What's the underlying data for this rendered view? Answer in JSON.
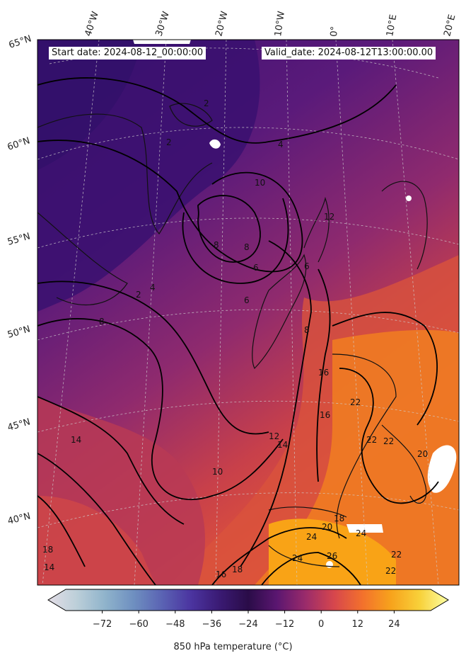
{
  "header": {
    "start_date": "Start date: 2024-08-12_00:00:00",
    "valid_date": "Valid_date: 2024-08-12T13:00:00.00"
  },
  "lon_labels": [
    "40°W",
    "30°W",
    "20°W",
    "10°W",
    "0°",
    "10°E",
    "20°E"
  ],
  "lat_labels": [
    "65°N",
    "60°N",
    "55°N",
    "50°N",
    "45°N",
    "40°N"
  ],
  "contour_labels": [
    "2",
    "2",
    "2",
    "4",
    "4",
    "6",
    "6",
    "6",
    "8",
    "8",
    "8",
    "8",
    "10",
    "10",
    "12",
    "12",
    "14",
    "14",
    "14",
    "16",
    "16",
    "16",
    "18",
    "18",
    "18",
    "20",
    "20",
    "22",
    "22",
    "22",
    "22",
    "22",
    "24",
    "24",
    "24",
    "26"
  ],
  "colorbar": {
    "label": "850 hPa temperature ($^\\circ$C)",
    "ticks": [
      "−72",
      "−60",
      "−48",
      "−36",
      "−24",
      "−12",
      "0",
      "12",
      "24"
    ],
    "range": [
      -84,
      36
    ],
    "stops": [
      "#e3dde6",
      "#bccfd9",
      "#8fb3cb",
      "#6e8fc0",
      "#5a62b3",
      "#4b34a0",
      "#3a1a73",
      "#2a0c48",
      "#5a1670",
      "#9a2b6b",
      "#d6464d",
      "#f3712c",
      "#f7a31c",
      "#f8d13a",
      "#fcfea4"
    ]
  },
  "fields": {
    "colors": {
      "cold": "#3b1170",
      "mid": "#6b1d7a",
      "warm": "#c8404a",
      "hot": "#f07a22",
      "hottest": "#f9a316",
      "missing": "#ffffff",
      "contour": "#000000",
      "grid": "#cfcfcf"
    }
  }
}
